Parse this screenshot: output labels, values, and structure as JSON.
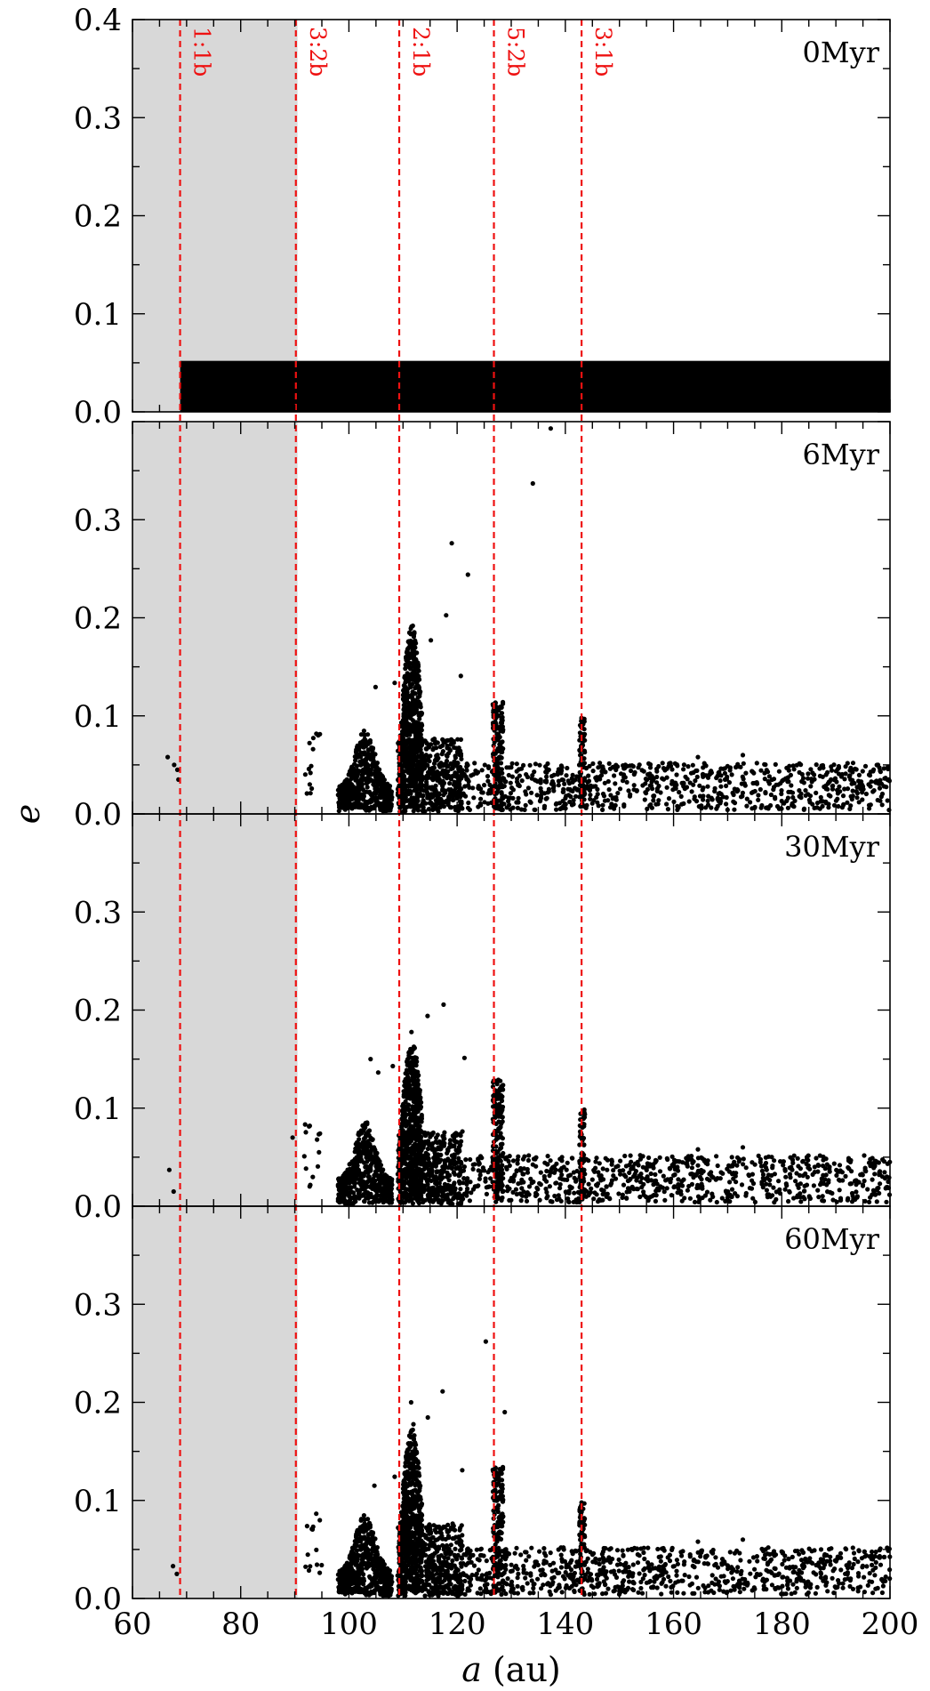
{
  "chart_data": {
    "type": "scatter",
    "xlabel_italic": "a",
    "xlabel_rest": " (au)",
    "ylabel": "e",
    "xlim": [
      60,
      200
    ],
    "ylim": [
      0.0,
      0.4
    ],
    "x_ticks": [
      "60",
      "80",
      "100",
      "120",
      "140",
      "160",
      "180",
      "200"
    ],
    "y_ticks": [
      "0.0",
      "0.1",
      "0.2",
      "0.3",
      "0.4"
    ],
    "shaded_region": [
      60,
      90.5
    ],
    "resonances": [
      {
        "label": "1:1b",
        "a": 68.8
      },
      {
        "label": "3:2b",
        "a": 90.2
      },
      {
        "label": "2:1b",
        "a": 109.3
      },
      {
        "label": "5:2b",
        "a": 126.8
      },
      {
        "label": "3:1b",
        "a": 143.0
      }
    ],
    "panels": [
      {
        "label": "0Myr",
        "band": {
          "xmin": 68.8,
          "xmax": 200,
          "emax": 0.052
        }
      },
      {
        "label": "6Myr"
      },
      {
        "label": "30Myr"
      },
      {
        "label": "60Myr"
      }
    ]
  }
}
